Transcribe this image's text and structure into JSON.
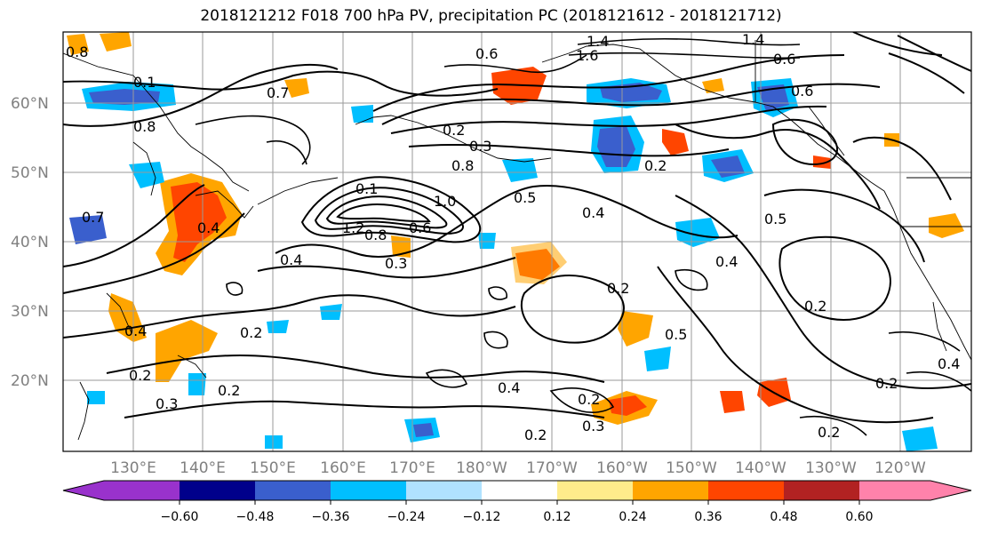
{
  "title": "2018121212 F018 700 hPa PV, precipitation PC (2018121612 - 2018121712)",
  "lat_labels": [
    "60°N",
    "50°N",
    "40°N",
    "30°N",
    "20°N"
  ],
  "lon_labels": [
    "130°E",
    "140°E",
    "150°E",
    "160°E",
    "170°E",
    "180°W",
    "170°W",
    "160°W",
    "150°W",
    "140°W",
    "130°W",
    "120°W"
  ],
  "contour_labels": [
    "0.8",
    "0.7",
    "0.1",
    "0.6",
    "1.4",
    "1.6",
    "1.4",
    "0.6",
    "0.6",
    "0.8",
    "0.7",
    "0.2",
    "0.3",
    "0.8",
    "0.5",
    "0.4",
    "0.2",
    "0.5",
    "0.1",
    "1.0",
    "1.2",
    "0.8",
    "0.6",
    "0.4",
    "0.3",
    "0.4",
    "0.4",
    "0.2",
    "0.5",
    "0.2",
    "0.4",
    "0.3",
    "0.2",
    "0.2",
    "0.4",
    "0.2",
    "0.3",
    "0.2",
    "0.2",
    "0.2",
    "0.4",
    "0.2"
  ],
  "colorbar": {
    "tick_labels": [
      "−0.60",
      "−0.48",
      "−0.36",
      "−0.24",
      "−0.12",
      "0.12",
      "0.24",
      "0.36",
      "0.48",
      "0.60"
    ],
    "colors": [
      "#9932cc",
      "#00008b",
      "#3a5fcd",
      "#00bfff",
      "#b0e2ff",
      "#ffffff",
      "#ffec8b",
      "#ffa500",
      "#ff4500",
      "#b22222",
      "#ff82ab"
    ]
  },
  "fill_colors": {
    "neg_strong": "#3a5fcd",
    "neg_mid": "#00bfff",
    "neg_weak": "#b0e2ff",
    "pos_weak": "#ffec8b",
    "pos_mid": "#ffa500",
    "pos_strong": "#ff4500"
  }
}
